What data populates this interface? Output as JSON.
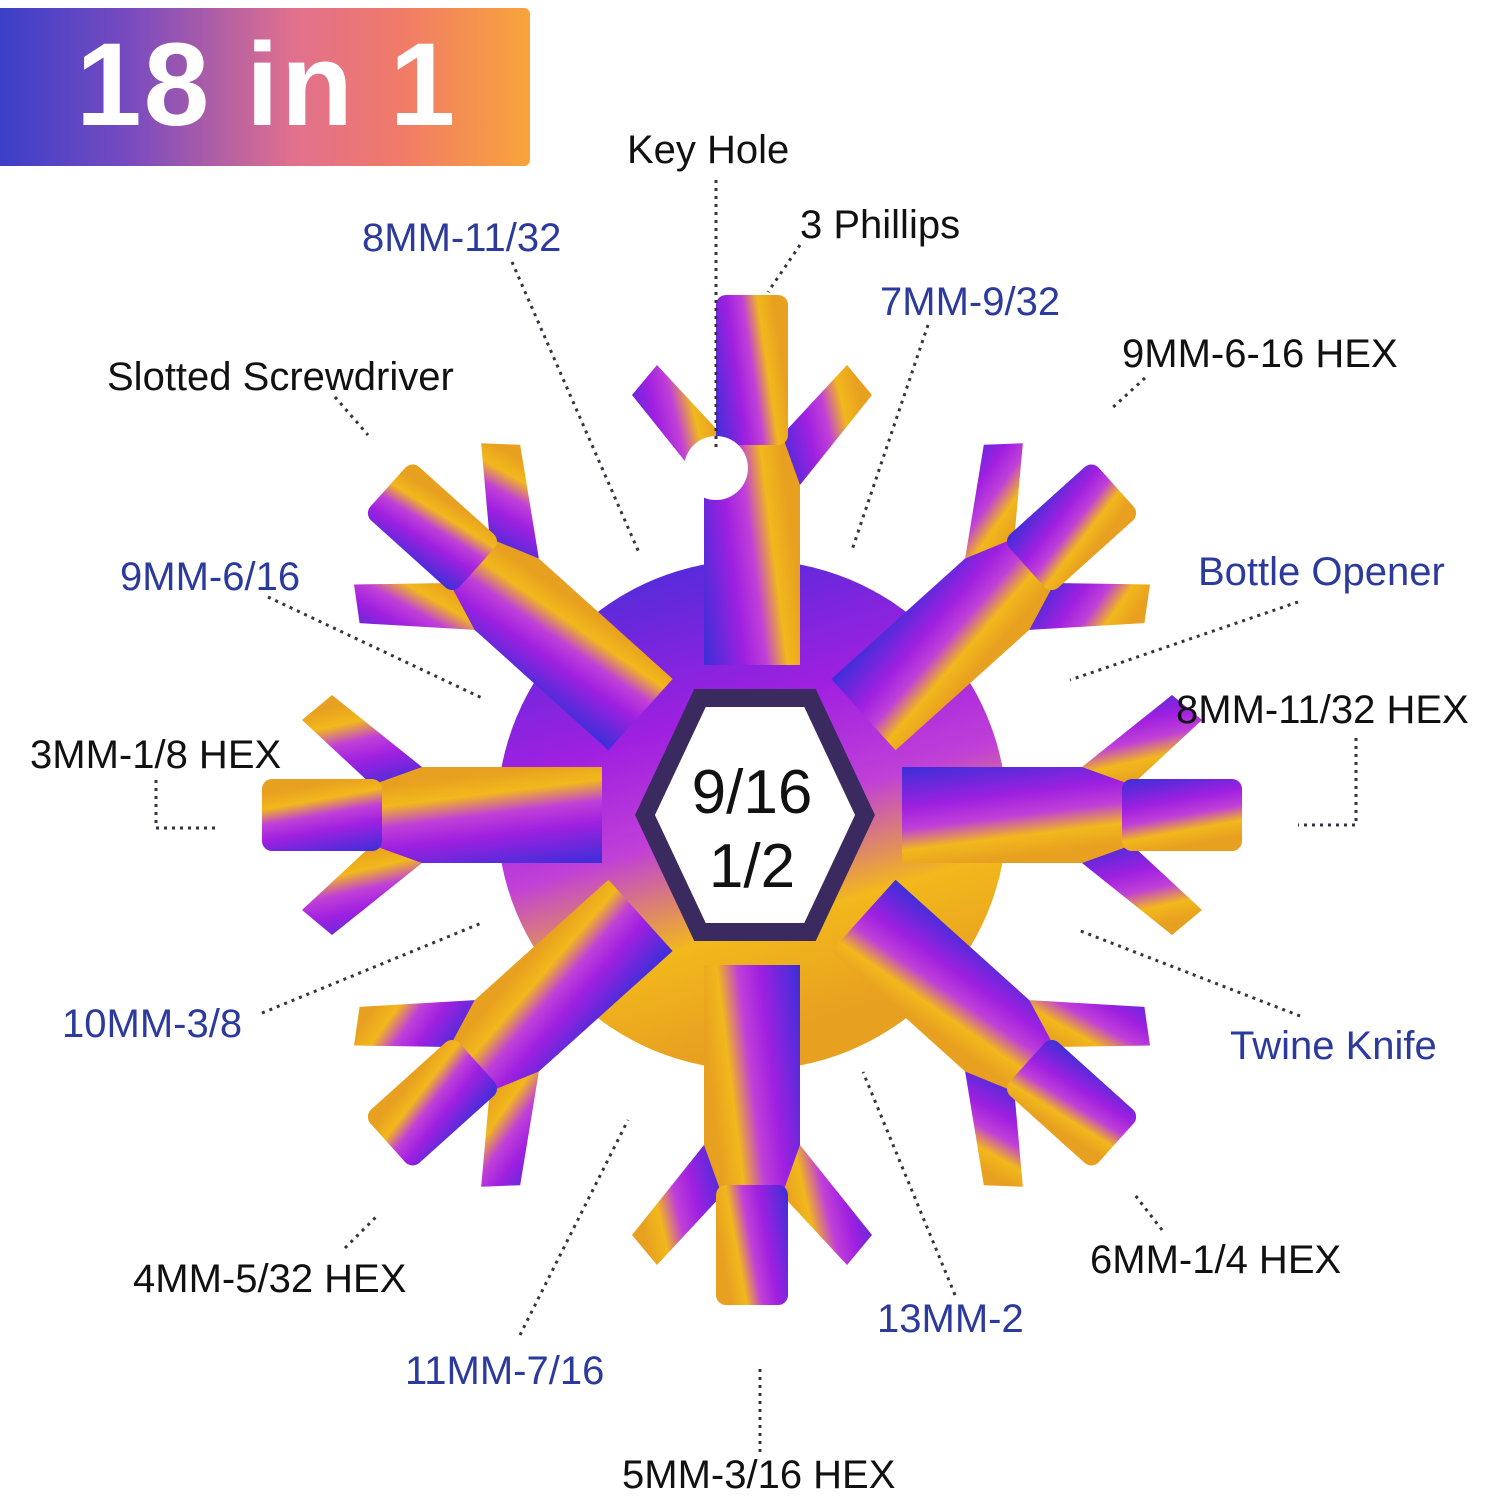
{
  "banner": {
    "title": "18 in 1"
  },
  "center": {
    "line1": "9/16",
    "line2": "1/2"
  },
  "labels": {
    "key_hole": "Key Hole",
    "phillips": "3 Phillips",
    "mm8_11_32": "8MM-11/32",
    "mm7_9_32": "7MM-9/32",
    "mm9_6_16_hex": "9MM-6-16 HEX",
    "slotted": "Slotted Screwdriver",
    "bottle_opener": "Bottle Opener",
    "mm9_6_16": "9MM-6/16",
    "mm8_11_32_hex": "8MM-11/32 HEX",
    "mm3_hex": "3MM-1/8 HEX",
    "mm10": "10MM-3/8",
    "twine_knife": "Twine Knife",
    "mm6_hex": "6MM-1/4 HEX",
    "mm4_hex": "4MM-5/32 HEX",
    "mm13": "13MM-2",
    "mm11": "11MM-7/16",
    "mm5_hex": "5MM-3/16 HEX"
  },
  "colors": {
    "label_blue": "#2b3a9c",
    "label_black": "#111111",
    "tool_gradient": [
      "#3a2fd8",
      "#a020e0",
      "#e08ad0",
      "#f2b81c"
    ]
  }
}
